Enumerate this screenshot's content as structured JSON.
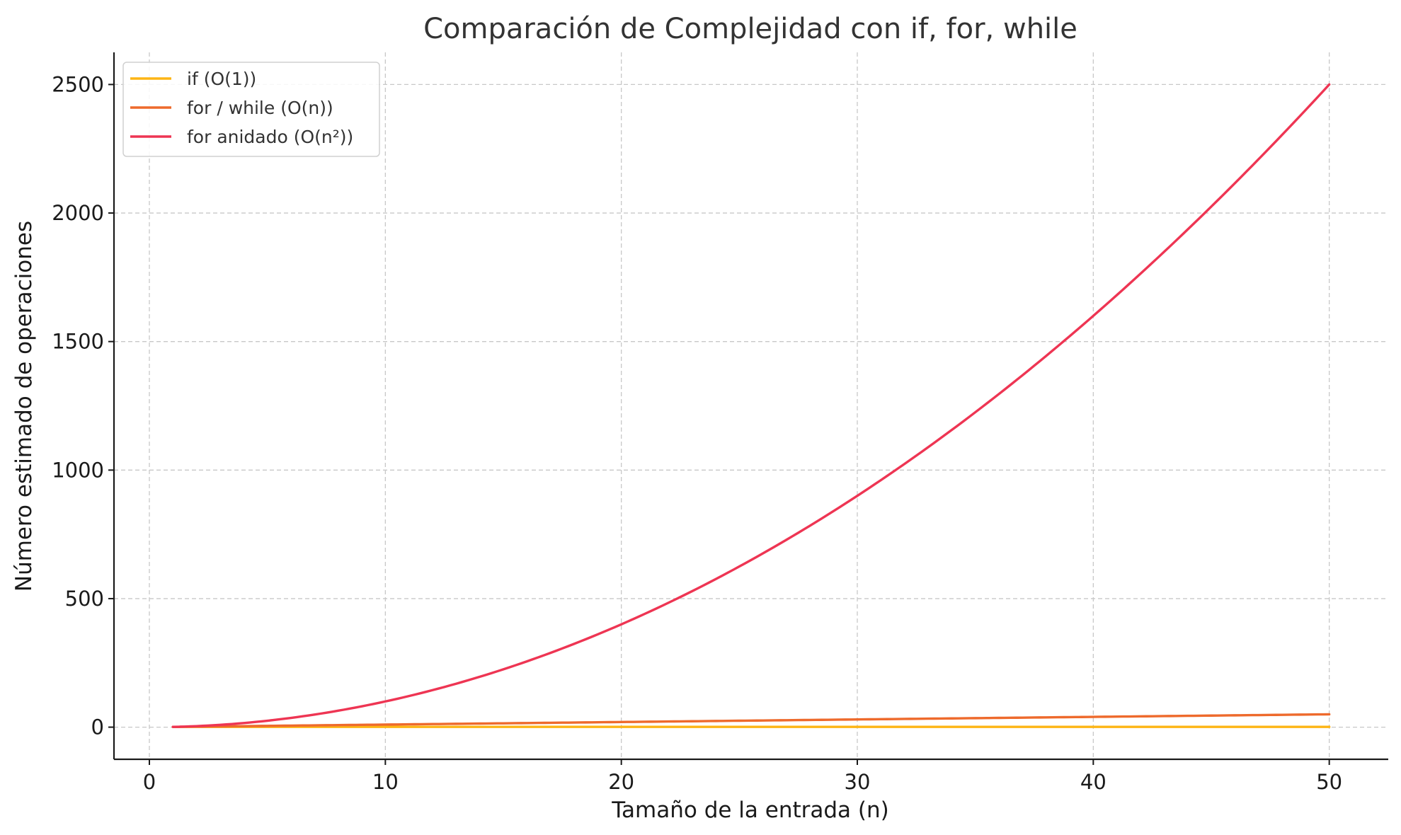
{
  "chart_data": {
    "type": "line",
    "title": "Comparación de Complejidad con if, for, while",
    "xlabel": "Tamaño de la entrada (n)",
    "ylabel": "Número estimado de operaciones",
    "xlim": [
      -1.5,
      52.5
    ],
    "ylim": [
      -125,
      2625
    ],
    "xticks": [
      0,
      10,
      20,
      30,
      40,
      50
    ],
    "yticks": [
      0,
      500,
      1000,
      1500,
      2000,
      2500
    ],
    "grid": true,
    "legend_position": "top-left",
    "x_range": [
      1,
      50
    ],
    "series": [
      {
        "name": "if (O(1))",
        "color": "#FDB515",
        "formula": "1"
      },
      {
        "name": "for / while (O(n))",
        "color": "#EE6A2C",
        "formula": "n"
      },
      {
        "name": "for anidado (O(n²))",
        "color": "#EE3553",
        "formula": "n^2"
      }
    ]
  }
}
